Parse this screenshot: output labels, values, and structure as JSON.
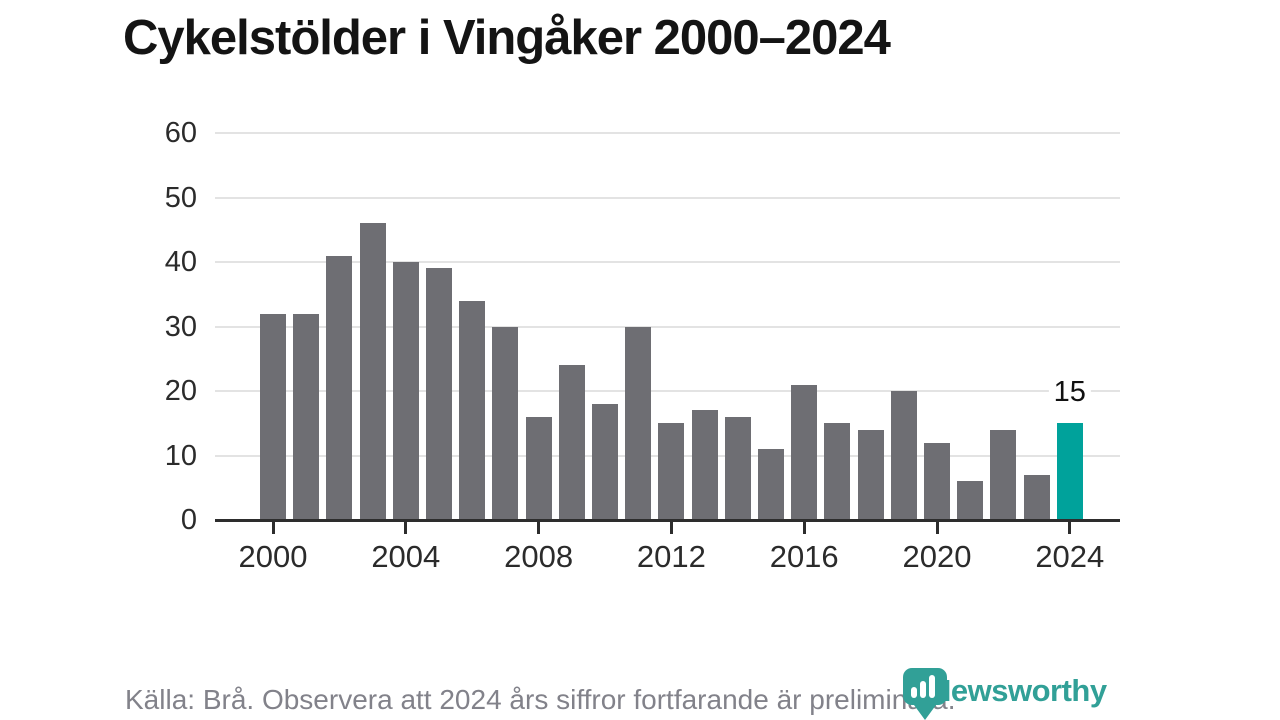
{
  "title": "Cykelstölder i Vingåker 2000–2024",
  "chart_data": {
    "type": "bar",
    "title": "Cykelstölder i Vingåker 2000–2024",
    "categories": [
      2000,
      2001,
      2002,
      2003,
      2004,
      2005,
      2006,
      2007,
      2008,
      2009,
      2010,
      2011,
      2012,
      2013,
      2014,
      2015,
      2016,
      2017,
      2018,
      2019,
      2020,
      2021,
      2022,
      2023,
      2024
    ],
    "values": [
      32,
      32,
      41,
      46,
      40,
      39,
      34,
      30,
      16,
      24,
      18,
      30,
      15,
      17,
      16,
      11,
      21,
      15,
      14,
      20,
      12,
      6,
      14,
      7,
      15
    ],
    "xlabel": "",
    "ylabel": "",
    "ylim": [
      0,
      60
    ],
    "yticks": [
      0,
      10,
      20,
      30,
      40,
      50,
      60
    ],
    "xticks": [
      2000,
      2004,
      2008,
      2012,
      2016,
      2020,
      2024
    ],
    "grid": "horizontal",
    "legend": "none",
    "highlight_category": 2024,
    "annotation": {
      "category": 2024,
      "text": "15"
    }
  },
  "colors": {
    "bar": "#6e6e73",
    "highlight": "#00a29b",
    "grid": "#e3e3e3",
    "axis": "#2d2d2d",
    "tick_label": "#2b2b2b",
    "title": "#141414",
    "footer": "#82828a",
    "logo": "#31a097"
  },
  "footer": {
    "source_note": "Källa: Brå. Observera att 2024 års siffror fortfarande är preliminära."
  },
  "logo": {
    "text": "Newsworthy",
    "icon": "newsworthy-pin-barchart-icon"
  }
}
